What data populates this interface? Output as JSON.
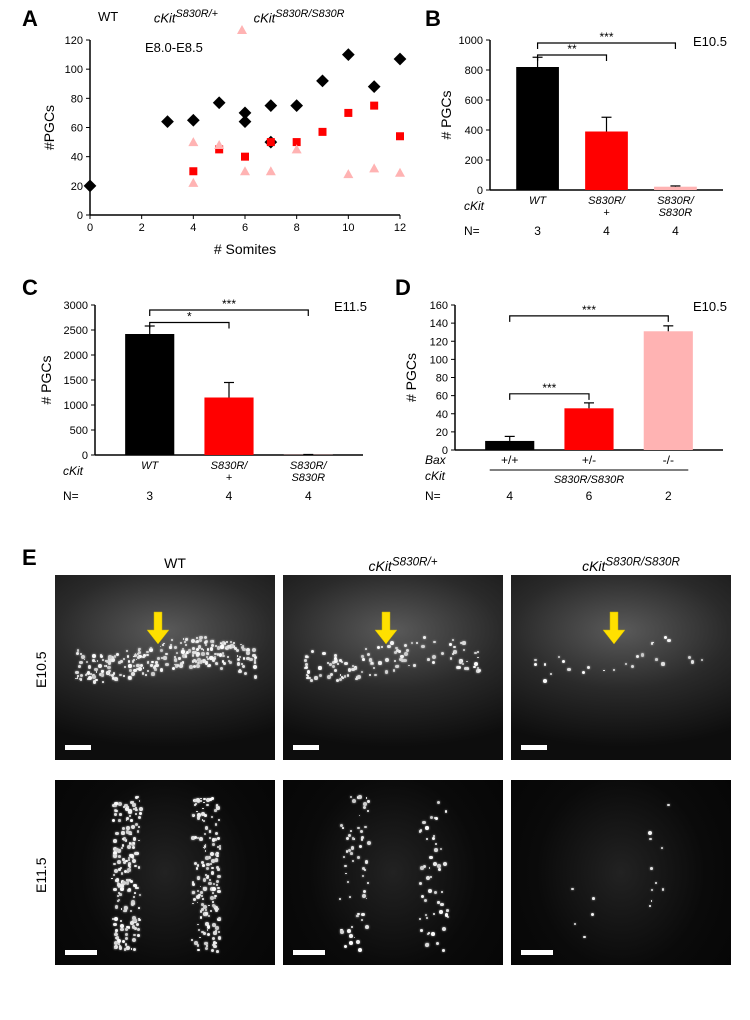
{
  "panels": {
    "A": {
      "label": "A",
      "stage": "E8.0-E8.5",
      "xLabel": "# Somites",
      "yLabel": "#PGCs",
      "xlim": [
        0,
        12
      ],
      "ylim": [
        0,
        120
      ],
      "xticks": [
        0,
        2,
        4,
        6,
        8,
        10,
        12
      ],
      "yticks": [
        0,
        20,
        40,
        60,
        80,
        100,
        120
      ],
      "legend": [
        {
          "label": "WT",
          "marker": "diamond",
          "color": "#000000"
        },
        {
          "label": "cKit",
          "super": "S830R/+",
          "marker": "square",
          "color": "#ff0000"
        },
        {
          "label": "cKit",
          "super": "S830R/S830R",
          "marker": "triangle",
          "color": "#ffb3b3"
        }
      ],
      "series": {
        "wt": {
          "marker": "diamond",
          "color": "#000000",
          "points": [
            [
              0,
              20
            ],
            [
              3,
              64
            ],
            [
              4,
              65
            ],
            [
              5,
              77
            ],
            [
              6,
              64
            ],
            [
              6,
              70
            ],
            [
              7,
              50
            ],
            [
              7,
              75
            ],
            [
              8,
              75
            ],
            [
              9,
              92
            ],
            [
              10,
              110
            ],
            [
              11,
              88
            ],
            [
              12,
              107
            ]
          ]
        },
        "het": {
          "marker": "square",
          "color": "#ff0000",
          "points": [
            [
              4,
              30
            ],
            [
              5,
              45
            ],
            [
              6,
              40
            ],
            [
              7,
              50
            ],
            [
              8,
              50
            ],
            [
              9,
              57
            ],
            [
              10,
              70
            ],
            [
              11,
              75
            ],
            [
              12,
              54
            ]
          ]
        },
        "hom": {
          "marker": "triangle",
          "color": "#ffb3b3",
          "points": [
            [
              4,
              50
            ],
            [
              4,
              22
            ],
            [
              5,
              48
            ],
            [
              6,
              30
            ],
            [
              7,
              30
            ],
            [
              8,
              45
            ],
            [
              10,
              28
            ],
            [
              11,
              32
            ],
            [
              12,
              29
            ]
          ]
        }
      }
    },
    "B": {
      "label": "B",
      "stage": "E10.5",
      "yLabel": "# PGCs",
      "ylim": [
        0,
        1000
      ],
      "yticks": [
        0,
        200,
        400,
        600,
        800,
        1000
      ],
      "categories": [
        "WT",
        "S830R/\n+",
        "S830R/\nS830R"
      ],
      "categoryPrefix": "cKit",
      "N": [
        3,
        4,
        4
      ],
      "values": [
        820,
        390,
        22
      ],
      "errors": [
        65,
        95,
        5
      ],
      "colors": [
        "#000000",
        "#ff0000",
        "#ffb3b3"
      ],
      "sig": [
        {
          "from": 0,
          "to": 1,
          "stars": "**",
          "y": 900
        },
        {
          "from": 0,
          "to": 2,
          "stars": "***",
          "y": 980
        }
      ]
    },
    "C": {
      "label": "C",
      "stage": "E11.5",
      "yLabel": "# PGCs",
      "ylim": [
        0,
        3000
      ],
      "yticks": [
        0,
        500,
        1000,
        1500,
        2000,
        2500,
        3000
      ],
      "categories": [
        "WT",
        "S830R/\n+",
        "S830R/\nS830R"
      ],
      "categoryPrefix": "cKit",
      "N": [
        3,
        4,
        4
      ],
      "values": [
        2420,
        1150,
        5
      ],
      "errors": [
        160,
        300,
        5
      ],
      "colors": [
        "#000000",
        "#ff0000",
        "#ffb3b3"
      ],
      "sig": [
        {
          "from": 0,
          "to": 1,
          "stars": "*",
          "y": 2650
        },
        {
          "from": 0,
          "to": 2,
          "stars": "***",
          "y": 2900
        }
      ]
    },
    "D": {
      "label": "D",
      "stage": "E10.5",
      "yLabel": "# PGCs",
      "ylim": [
        0,
        160
      ],
      "yticks": [
        0,
        20,
        40,
        60,
        80,
        100,
        120,
        140,
        160
      ],
      "categories": [
        "+/+",
        "+/-",
        "-/-"
      ],
      "baxLabel": "Bax",
      "ckitLabel": "cKit",
      "ckitGeno": "S830R/S830R",
      "N": [
        4,
        6,
        2
      ],
      "values": [
        10,
        46,
        131
      ],
      "errors": [
        5,
        6,
        6
      ],
      "colors": [
        "#000000",
        "#ff0000",
        "#ffb3b3"
      ],
      "sig": [
        {
          "from": 0,
          "to": 1,
          "stars": "***",
          "y": 62
        },
        {
          "from": 0,
          "to": 2,
          "stars": "***",
          "y": 148
        }
      ]
    },
    "E": {
      "label": "E",
      "cols": [
        {
          "title": "WT"
        },
        {
          "title": "cKit",
          "super": "S830R/+"
        },
        {
          "title": "cKit",
          "super": "S830R/S830R"
        }
      ],
      "rows": [
        "E10.5",
        "E11.5"
      ],
      "scalebarColor": "#ffffff"
    }
  }
}
